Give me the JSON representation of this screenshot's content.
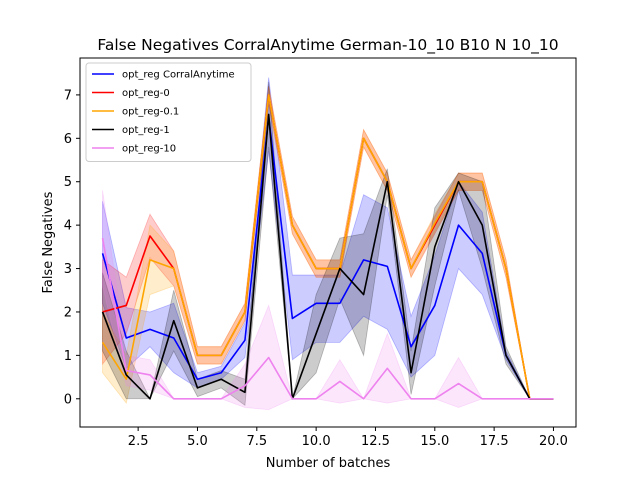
{
  "chart_data": {
    "type": "line",
    "title": "False Negatives CorralAnytime German-10_10 B10 N 10_10",
    "xlabel": "Number of batches",
    "ylabel": "False Negatives",
    "xlim": [
      0.05,
      20.95
    ],
    "ylim": [
      -0.65,
      7.85
    ],
    "x_ticks": [
      2.5,
      5.0,
      7.5,
      10.0,
      12.5,
      15.0,
      17.5,
      20.0
    ],
    "x_tick_labels": [
      "2.5",
      "5.0",
      "7.5",
      "10.0",
      "12.5",
      "15.0",
      "17.5",
      "20.0"
    ],
    "y_ticks": [
      0,
      1,
      2,
      3,
      4,
      5,
      6,
      7
    ],
    "y_tick_labels": [
      "0",
      "1",
      "2",
      "3",
      "4",
      "5",
      "6",
      "7"
    ],
    "legend_position": "top-left",
    "grid": false,
    "x": [
      1,
      2,
      3,
      4,
      5,
      6,
      7,
      8,
      9,
      10,
      11,
      12,
      13,
      14,
      15,
      16,
      17,
      18,
      19,
      20
    ],
    "series": [
      {
        "name": "opt_reg CorralAnytime",
        "color": "#0000ff",
        "values": [
          3.35,
          1.4,
          1.6,
          1.4,
          0.45,
          0.6,
          1.35,
          6.5,
          1.85,
          2.2,
          2.2,
          3.2,
          3.05,
          1.2,
          2.15,
          4.0,
          3.35,
          1.0,
          0.0,
          0.0
        ],
        "lower": [
          2.2,
          0.7,
          1.2,
          0.6,
          0.25,
          0.45,
          0.95,
          5.7,
          0.9,
          1.3,
          1.3,
          1.9,
          1.6,
          0.5,
          1.0,
          3.0,
          2.4,
          0.9,
          0.0,
          0.0
        ],
        "upper": [
          4.55,
          2.1,
          2.0,
          2.2,
          0.6,
          0.75,
          1.75,
          7.4,
          2.85,
          2.85,
          2.85,
          4.7,
          4.4,
          1.9,
          3.3,
          5.0,
          4.3,
          1.1,
          0.0,
          0.0
        ]
      },
      {
        "name": "opt_reg-0",
        "color": "#ff0000",
        "values": [
          2.0,
          2.15,
          3.75,
          3.0,
          1.0,
          1.0,
          2.0,
          7.0,
          4.0,
          3.0,
          3.0,
          6.0,
          5.0,
          3.0,
          4.0,
          5.0,
          5.0,
          3.0,
          0.0,
          0.0
        ],
        "lower": [
          0.8,
          1.5,
          3.25,
          2.6,
          0.8,
          0.8,
          1.8,
          6.8,
          3.8,
          2.8,
          2.8,
          5.8,
          4.8,
          2.8,
          3.8,
          4.8,
          4.8,
          2.8,
          0.0,
          0.0
        ],
        "upper": [
          3.2,
          2.8,
          4.25,
          3.4,
          1.2,
          1.2,
          2.2,
          7.2,
          4.2,
          3.2,
          3.2,
          6.2,
          5.2,
          3.2,
          4.2,
          5.2,
          5.2,
          3.2,
          0.0,
          0.0
        ]
      },
      {
        "name": "opt_reg-0.1",
        "color": "#ffa500",
        "values": [
          1.3,
          0.45,
          3.2,
          3.0,
          1.0,
          1.0,
          2.0,
          7.0,
          4.0,
          3.0,
          3.0,
          6.0,
          5.0,
          3.0,
          4.05,
          5.0,
          5.0,
          3.0,
          0.0,
          0.0
        ],
        "lower": [
          0.6,
          -0.1,
          2.4,
          2.6,
          0.8,
          0.8,
          1.8,
          6.8,
          3.8,
          2.8,
          2.8,
          5.8,
          4.8,
          2.8,
          3.85,
          4.8,
          4.8,
          2.8,
          0.0,
          0.0
        ],
        "upper": [
          2.0,
          1.0,
          4.0,
          3.4,
          1.2,
          1.2,
          2.2,
          7.2,
          4.2,
          3.2,
          3.2,
          6.2,
          5.2,
          3.2,
          4.25,
          5.2,
          5.2,
          3.2,
          0.0,
          0.0
        ]
      },
      {
        "name": "opt_reg-1",
        "color": "#000000",
        "values": [
          2.0,
          0.55,
          0.0,
          1.8,
          0.25,
          0.45,
          0.15,
          6.55,
          0.0,
          1.5,
          3.0,
          2.4,
          5.0,
          0.6,
          3.5,
          5.0,
          4.0,
          1.0,
          0.0,
          0.0
        ],
        "lower": [
          1.1,
          0.0,
          0.0,
          1.1,
          0.05,
          0.25,
          -0.15,
          5.8,
          0.0,
          0.6,
          2.3,
          1.0,
          4.7,
          0.1,
          2.6,
          4.8,
          3.0,
          0.8,
          0.0,
          0.0
        ],
        "upper": [
          2.9,
          1.1,
          0.0,
          2.5,
          0.45,
          0.65,
          0.45,
          7.3,
          0.0,
          2.4,
          3.7,
          3.8,
          5.3,
          1.1,
          4.4,
          5.2,
          5.0,
          1.2,
          0.0,
          0.0
        ]
      },
      {
        "name": "opt_reg-10",
        "color": "#ee82ee",
        "values": [
          3.7,
          0.65,
          0.55,
          0.0,
          0.0,
          0.0,
          0.3,
          0.95,
          0.0,
          0.0,
          0.4,
          0.0,
          0.7,
          0.0,
          0.0,
          0.35,
          0.0,
          0.0,
          0.0,
          0.0
        ],
        "lower": [
          2.6,
          0.3,
          0.2,
          0.0,
          0.0,
          0.0,
          -0.2,
          -0.25,
          0.0,
          0.0,
          -0.1,
          0.0,
          -0.1,
          0.0,
          0.0,
          -0.2,
          0.0,
          0.0,
          0.0,
          0.0
        ],
        "upper": [
          4.8,
          1.0,
          0.9,
          0.0,
          0.0,
          0.0,
          0.8,
          2.15,
          0.0,
          0.0,
          0.9,
          0.0,
          1.5,
          0.0,
          0.0,
          0.95,
          0.0,
          0.0,
          0.0,
          0.0
        ]
      }
    ]
  }
}
